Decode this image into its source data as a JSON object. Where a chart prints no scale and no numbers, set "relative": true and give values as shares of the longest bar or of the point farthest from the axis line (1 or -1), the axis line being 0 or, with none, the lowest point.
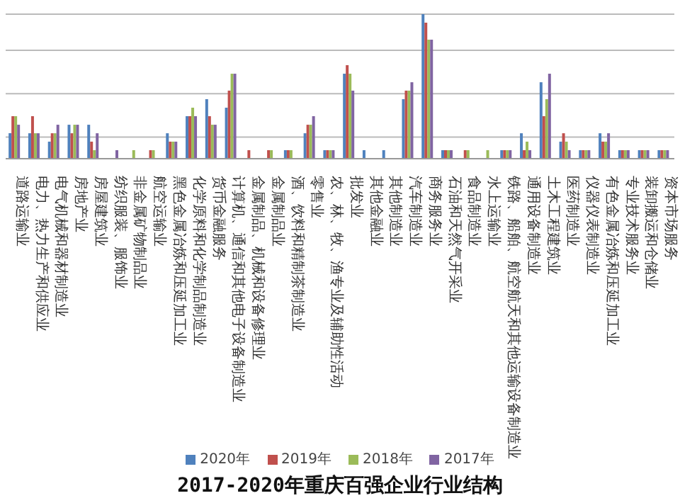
{
  "chart_data": {
    "type": "bar",
    "title": "2017-2020年重庆百强企业行业结构",
    "relative": true,
    "grid": "y",
    "legend": "bottom",
    "categories": [
      "道路运输业",
      "电力、热力生产和供应业",
      "电气机械和器材制造业",
      "房地产业",
      "房屋建筑业",
      "纺织服装、服饰业",
      "非金属矿物制品业",
      "航空运输业",
      "黑色金属冶炼和压延加工业",
      "化学原料和化学制品制造业",
      "货币金融服务",
      "计算机、通信和其他电子设备制造业",
      "金属制品、机械和设备修理业",
      "金属制品业",
      "酒、饮料和精制茶制造业",
      "零售业",
      "农、林、牧、渔专业及辅助性活动",
      "批发业",
      "其他金融业",
      "其他制造业",
      "汽车制造业",
      "商务服务业",
      "石油和天然气开采业",
      "食品制造业",
      "水上运输业",
      "铁路、船舶、航空航天和其他运输设备制造业",
      "通用设备制造业",
      "土木工程建筑业",
      "医药制造业",
      "仪器仪表制造业",
      "有色金属冶炼和压延加工业",
      "专业技术服务业",
      "装卸搬运和仓储业",
      "资本市场服务"
    ],
    "series": [
      {
        "name": "2020年",
        "color": "#4f81bd",
        "values": [
          0.176,
          0.176,
          0.118,
          0.235,
          0.235,
          0,
          0,
          0,
          0.176,
          0.294,
          0.412,
          0.353,
          0,
          0,
          0.059,
          0.176,
          0.059,
          0.588,
          0.059,
          0.059,
          0.412,
          1,
          0.059,
          0,
          0,
          0.059,
          0.176,
          0.529,
          0.118,
          0.059,
          0.176,
          0.059,
          0.059,
          0.059
        ]
      },
      {
        "name": "2019年",
        "color": "#c0504d",
        "values": [
          0.294,
          0.294,
          0.176,
          0.176,
          0.118,
          0,
          0,
          0.059,
          0.118,
          0.294,
          0.294,
          0.471,
          0.059,
          0.059,
          0.059,
          0.235,
          0.059,
          0.647,
          0,
          0,
          0.471,
          0.941,
          0.059,
          0.059,
          0,
          0.059,
          0.059,
          0.294,
          0.176,
          0.059,
          0.118,
          0.059,
          0.059,
          0.059
        ]
      },
      {
        "name": "2018年",
        "color": "#9bbb59",
        "values": [
          0.294,
          0.176,
          0.176,
          0.235,
          0.059,
          0,
          0.059,
          0.059,
          0.118,
          0.353,
          0.235,
          0.588,
          0,
          0.059,
          0.059,
          0.235,
          0.059,
          0.588,
          0,
          0,
          0.471,
          0.824,
          0.059,
          0.059,
          0.059,
          0.059,
          0.118,
          0.412,
          0.118,
          0.059,
          0.118,
          0.059,
          0.059,
          0.059
        ]
      },
      {
        "name": "2017年",
        "color": "#8064a2",
        "values": [
          0.235,
          0.176,
          0.235,
          0.235,
          0.176,
          0.059,
          0,
          0,
          0.118,
          0.294,
          0.235,
          0.588,
          0,
          0,
          0,
          0.294,
          0.059,
          0.471,
          0,
          0,
          0.529,
          0.824,
          0.059,
          0,
          0,
          0.059,
          0.059,
          0.588,
          0.059,
          0.059,
          0.176,
          0.059,
          0.059,
          0.059
        ]
      }
    ]
  }
}
